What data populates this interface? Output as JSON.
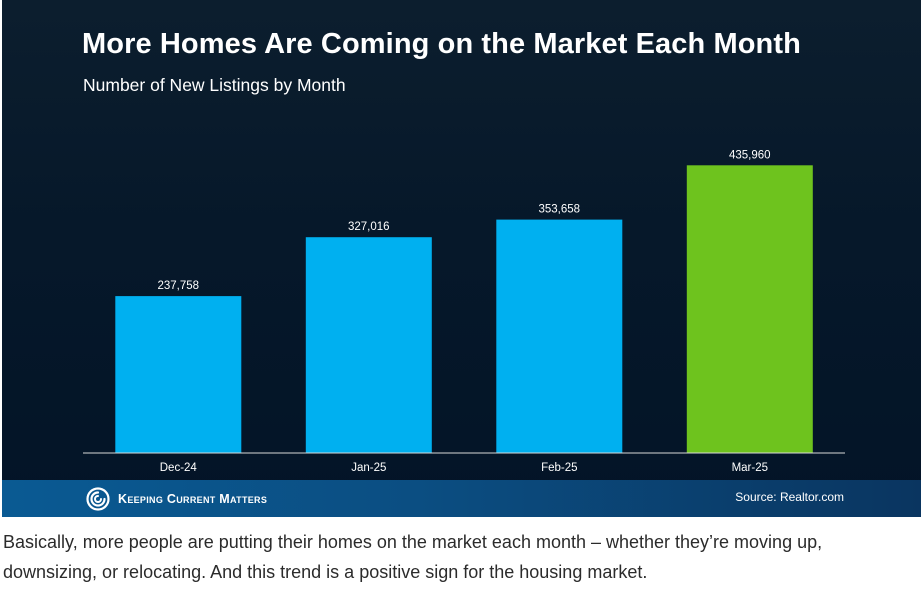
{
  "chart_data": {
    "type": "bar",
    "title": "More Homes Are Coming on the Market Each Month",
    "subtitle": "Number of New Listings by Month",
    "categories": [
      "Dec-24",
      "Jan-25",
      "Feb-25",
      "Mar-25"
    ],
    "values": [
      237758,
      327016,
      353658,
      435960
    ],
    "value_labels": [
      "237,758",
      "327,016",
      "353,658",
      "435,960"
    ],
    "bar_colors": [
      "#00b0f0",
      "#00b0f0",
      "#00b0f0",
      "#6ec31e"
    ],
    "xlabel": "",
    "ylabel": "",
    "ylim": [
      0,
      500000
    ],
    "grid": false,
    "legend": "none"
  },
  "footer": {
    "logo_text": "Keeping Current Matters",
    "source": "Source: Realtor.com"
  },
  "caption": "Basically, more people are putting their homes on the market each month – whether they’re moving up, downsizing, or relocating. And this trend is a positive sign for the housing market.",
  "colors": {
    "background": "#06182a",
    "bar": "#00b0f0",
    "highlight_bar": "#6ec31e",
    "footer": "#0b4e82"
  },
  "icons": {
    "logo": "kcm-swirl-icon"
  }
}
